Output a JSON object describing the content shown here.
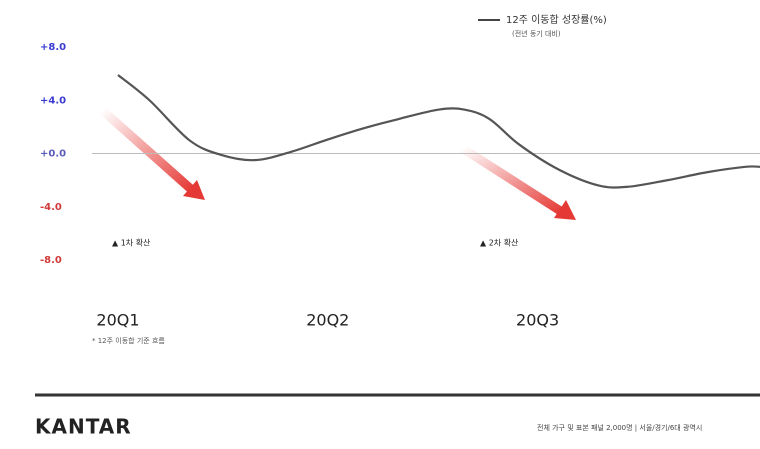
{
  "chart_data": {
    "type": "line",
    "legend": "12주 이동합 성장률(%)",
    "legend_sub": "(전년 동기 대비)",
    "note": "* 12주 이동합 기준 흐름",
    "annotations": [
      "▲ 1차 확산",
      "▲ 2차 확산"
    ],
    "xlim": [
      0,
      3.06
    ],
    "xticks": [
      {
        "value": 0,
        "label": "20Q1"
      },
      {
        "value": 1,
        "label": "20Q2"
      },
      {
        "value": 2,
        "label": "20Q3"
      }
    ],
    "ylim": [
      -8,
      8
    ],
    "yticks": [
      {
        "value": 8,
        "label": "+8.0"
      },
      {
        "value": 4,
        "label": "+4.0"
      },
      {
        "value": 0,
        "label": "+0.0"
      },
      {
        "value": -4,
        "label": "-4.0"
      },
      {
        "value": -8,
        "label": "-8.0"
      }
    ],
    "zero_line": true,
    "series": [
      {
        "name": "12주 이동합 성장률(%)",
        "color": "#555555",
        "x": [
          0,
          0.15,
          0.34,
          0.49,
          0.65,
          0.82,
          0.99,
          1.15,
          1.34,
          1.53,
          1.65,
          1.77,
          1.91,
          2.1,
          2.29,
          2.43,
          2.62,
          2.81,
          2.99,
          3.06
        ],
        "values": [
          5.9,
          4.0,
          1.0,
          -0.1,
          -0.5,
          0.1,
          1.0,
          1.8,
          2.6,
          3.3,
          3.3,
          2.6,
          0.7,
          -1.2,
          -2.4,
          -2.5,
          -2.0,
          -1.4,
          -1.0,
          -1.0
        ]
      }
    ]
  },
  "brand": "KANTAR",
  "footer_note": "전체 가구 및 표본 패널 2,000명 | 서울/경기/6대 광역시"
}
